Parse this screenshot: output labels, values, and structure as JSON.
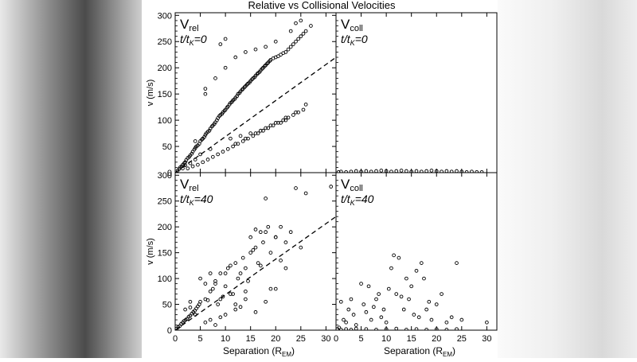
{
  "figure": {
    "title": "Relative vs Collisional Velocities",
    "background_color": "#ffffff",
    "ink_color": "#000000"
  },
  "chart_data": [
    {
      "id": "p1",
      "type": "scatter",
      "title": "Relative vs Collisional Velocities",
      "label_main": "V",
      "label_sub": "rel",
      "time_label_prefix": "t/t",
      "time_label_sub": "K",
      "time_label_suffix": "=0",
      "xlabel": "",
      "ylabel": "v (m/s)",
      "xlim": [
        0,
        32
      ],
      "ylim": [
        0,
        305
      ],
      "xticks": [],
      "yticks": [
        0,
        50,
        100,
        150,
        200,
        250,
        300
      ],
      "trend_line": {
        "x": [
          0,
          32
        ],
        "y": [
          0,
          220
        ],
        "style": "dashed"
      },
      "series": [
        {
          "name": "Vrel t/tK=0",
          "x": [
            0.5,
            0.8,
            1.0,
            1.3,
            1.5,
            1.8,
            2.0,
            2.2,
            2.5,
            2.8,
            3.0,
            3.3,
            3.5,
            3.8,
            4.0,
            4.2,
            4.5,
            4.8,
            5.0,
            5.3,
            5.5,
            5.8,
            6.0,
            6.2,
            6.5,
            6.8,
            7.0,
            7.3,
            7.5,
            7.8,
            8.0,
            8.3,
            8.5,
            8.8,
            9.0,
            9.3,
            9.5,
            9.8,
            10.0,
            10.3,
            10.5,
            10.8,
            11.0,
            11.3,
            11.5,
            11.8,
            12.0,
            12.3,
            12.5,
            12.8,
            13.0,
            13.3,
            13.5,
            13.8,
            14.0,
            14.3,
            14.5,
            14.8,
            15.0,
            15.3,
            15.5,
            15.8,
            16.0,
            16.3,
            16.5,
            16.8,
            17.0,
            17.3,
            17.5,
            17.8,
            18.0,
            18.3,
            18.5,
            18.8,
            19.0,
            19.5,
            20.0,
            20.5,
            21.0,
            21.5,
            22.0,
            22.5,
            23.0,
            23.5,
            24.0,
            24.5,
            25.0,
            25.5,
            26.0,
            27.0,
            2.5,
            3.5,
            4.5,
            5.5,
            6.5,
            7.5,
            8.5,
            9.5,
            10.5,
            11.5,
            12.5,
            13.5,
            14.5,
            15.5,
            16.5,
            17.5,
            18.5,
            19.5,
            20.5,
            21.5,
            22.5,
            23.5,
            24.5,
            25.5,
            23.0,
            24.0,
            25.0,
            20.0,
            18.0,
            16.0,
            14.0,
            12.0,
            10.0,
            8.0,
            6.0,
            4.0,
            11.0,
            13.0,
            15.0,
            17.0,
            19.0,
            21.0,
            22.0,
            6.0,
            9.0,
            10.0,
            1.5,
            2.0,
            3.0,
            4.0,
            5.0,
            7.0,
            12.0,
            14.0,
            16.0,
            18.0,
            20.0,
            22.0,
            24.0,
            26.0
          ],
          "y": [
            4,
            7,
            10,
            12,
            15,
            18,
            20,
            24,
            28,
            30,
            33,
            36,
            40,
            44,
            47,
            50,
            52,
            55,
            60,
            63,
            65,
            68,
            72,
            75,
            78,
            80,
            84,
            88,
            90,
            93,
            96,
            100,
            104,
            108,
            110,
            112,
            115,
            118,
            120,
            124,
            126,
            130,
            133,
            135,
            138,
            140,
            143,
            146,
            150,
            152,
            155,
            158,
            160,
            163,
            165,
            168,
            170,
            172,
            175,
            178,
            180,
            182,
            185,
            188,
            190,
            192,
            195,
            198,
            200,
            203,
            205,
            208,
            210,
            213,
            215,
            218,
            220,
            222,
            225,
            228,
            230,
            235,
            240,
            245,
            250,
            255,
            260,
            265,
            270,
            280,
            8,
            12,
            15,
            20,
            25,
            30,
            35,
            40,
            45,
            50,
            55,
            60,
            65,
            70,
            75,
            80,
            85,
            90,
            95,
            100,
            105,
            110,
            115,
            120,
            270,
            285,
            290,
            250,
            240,
            235,
            230,
            220,
            200,
            180,
            150,
            60,
            65,
            70,
            75,
            80,
            90,
            95,
            100,
            160,
            245,
            255,
            8,
            14,
            18,
            25,
            35,
            45,
            55,
            65,
            75,
            85,
            95,
            105,
            115,
            130
          ]
        }
      ]
    },
    {
      "id": "p2",
      "type": "scatter",
      "label_main": "V",
      "label_sub": "coll",
      "time_label_prefix": "t/t",
      "time_label_sub": "K",
      "time_label_suffix": "=0",
      "xlabel": "",
      "ylabel": "",
      "xlim": [
        0,
        32
      ],
      "ylim": [
        0,
        305
      ],
      "xticks": [],
      "yticks": [],
      "series": [
        {
          "name": "Vcoll t/tK=0",
          "x": [
            0.5,
            1,
            2,
            3,
            4,
            5,
            6,
            7,
            8,
            9,
            10,
            11,
            12,
            13,
            14,
            15,
            16,
            17,
            18,
            19,
            20,
            21,
            22,
            23,
            24,
            25,
            26,
            27,
            28,
            29
          ],
          "y": [
            1,
            2,
            1,
            2,
            3,
            2,
            3,
            2,
            3,
            4,
            3,
            2,
            3,
            4,
            3,
            2,
            3,
            2,
            3,
            4,
            3,
            2,
            3,
            2,
            3,
            2,
            1,
            2,
            1,
            1
          ]
        }
      ]
    },
    {
      "id": "p3",
      "type": "scatter",
      "label_main": "V",
      "label_sub": "rel",
      "time_label_prefix": "t/t",
      "time_label_sub": "K",
      "time_label_suffix": "=40",
      "xlabel": "Separation (R",
      "xlabel_sub": "EM",
      "xlabel_suffix": ")",
      "ylabel": "v (m/s)",
      "xlim": [
        0,
        32
      ],
      "ylim": [
        0,
        305
      ],
      "xticks": [
        0,
        5,
        10,
        15,
        20,
        25,
        30
      ],
      "yticks": [
        0,
        50,
        100,
        150,
        200,
        250,
        300
      ],
      "trend_line": {
        "x": [
          0,
          32
        ],
        "y": [
          0,
          220
        ],
        "style": "dashed"
      },
      "series": [
        {
          "name": "Vrel t/tK=40",
          "x": [
            0.3,
            0.6,
            0.9,
            1.2,
            1.5,
            1.8,
            2.1,
            2.4,
            2.7,
            3.0,
            3.3,
            3.6,
            3.9,
            4.2,
            4.5,
            4.8,
            2,
            3,
            4,
            5,
            6,
            6.5,
            7,
            7.5,
            8,
            8.5,
            9,
            9.5,
            10,
            10.5,
            11,
            11.5,
            12,
            12.5,
            13,
            13.5,
            14,
            14.5,
            15,
            15.5,
            16,
            16.5,
            17,
            17.5,
            18,
            18.5,
            19,
            20,
            21,
            22,
            23,
            24,
            25,
            26,
            31,
            6,
            8,
            10,
            12,
            14,
            16,
            18,
            20,
            22,
            8,
            11,
            13,
            15,
            17,
            19,
            7,
            9,
            12,
            14,
            16,
            18,
            20,
            5,
            6,
            7,
            3,
            9,
            21,
            10
          ],
          "y": [
            3,
            6,
            8,
            12,
            15,
            18,
            20,
            22,
            26,
            28,
            32,
            35,
            38,
            42,
            46,
            50,
            40,
            44,
            30,
            55,
            60,
            58,
            75,
            80,
            95,
            50,
            110,
            65,
            85,
            120,
            125,
            70,
            130,
            100,
            110,
            140,
            120,
            95,
            180,
            155,
            160,
            130,
            190,
            170,
            255,
            200,
            150,
            180,
            200,
            170,
            190,
            275,
            160,
            265,
            278,
            15,
            10,
            30,
            40,
            60,
            35,
            55,
            80,
            120,
            90,
            70,
            45,
            150,
            125,
            80,
            20,
            25,
            50,
            75,
            195,
            190,
            180,
            100,
            90,
            110,
            55,
            60,
            135,
            110
          ]
        }
      ]
    },
    {
      "id": "p4",
      "type": "scatter",
      "label_main": "V",
      "label_sub": "coll",
      "time_label_prefix": "t/t",
      "time_label_sub": "K",
      "time_label_suffix": "=40",
      "xlabel": "Separation (R",
      "xlabel_sub": "EM",
      "xlabel_suffix": ")",
      "ylabel": "",
      "xlim": [
        0,
        32
      ],
      "ylim": [
        0,
        305
      ],
      "xticks": [
        0,
        5,
        10,
        15,
        20,
        25,
        30
      ],
      "yticks": [],
      "series": [
        {
          "name": "Vcoll t/tK=40",
          "x": [
            0.3,
            0.6,
            1,
            1.5,
            2,
            2.5,
            3,
            3.5,
            4,
            5,
            5.5,
            6,
            6.5,
            7,
            7.5,
            8,
            8.5,
            9,
            9.5,
            10,
            10.5,
            11,
            11.5,
            12,
            12.5,
            13,
            13.5,
            14,
            14.5,
            15,
            15.5,
            16,
            16.5,
            17,
            17.5,
            18,
            18.5,
            19,
            20,
            21,
            22,
            23,
            24,
            25,
            30,
            1,
            2,
            3,
            4,
            6,
            8,
            10,
            12,
            14,
            16,
            18,
            20,
            22,
            24
          ],
          "y": [
            2,
            5,
            55,
            20,
            15,
            40,
            60,
            30,
            10,
            90,
            50,
            35,
            85,
            20,
            45,
            60,
            70,
            25,
            40,
            15,
            80,
            120,
            145,
            70,
            140,
            65,
            40,
            100,
            60,
            85,
            30,
            115,
            25,
            130,
            100,
            40,
            55,
            20,
            50,
            70,
            15,
            25,
            130,
            20,
            15,
            1,
            2,
            1,
            3,
            2,
            1,
            2,
            3,
            1,
            2,
            1,
            2,
            1,
            2
          ]
        }
      ]
    }
  ]
}
